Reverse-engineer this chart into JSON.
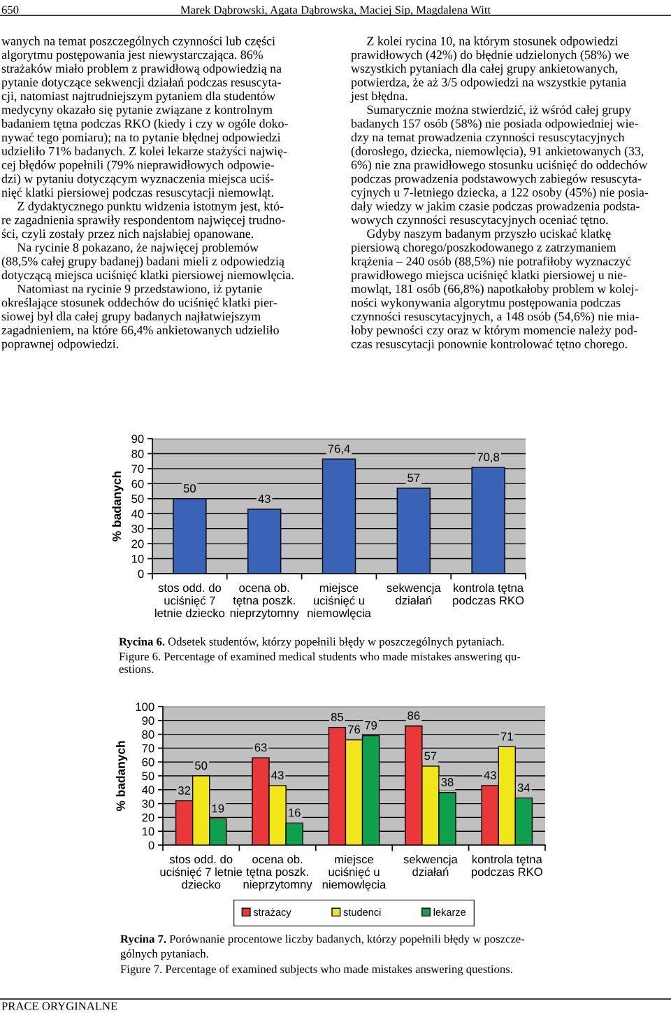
{
  "chart_data": [
    {
      "type": "bar",
      "ylabel": "% badanych",
      "categories": [
        "stos odd. do\nuciśnięć 7\nletnie dziecko",
        "ocena ob.\ntętna poszk.\nnieprzytomny",
        "miejsce\nuciśnięć u\nniemowlęcia",
        "sekwencja\ndziałań",
        "kontrola tętna\npodczas RKO"
      ],
      "values": [
        50,
        43,
        76.4,
        57,
        70.8
      ],
      "value_labels": [
        "50",
        "43",
        "76,4",
        "57",
        "70,8"
      ],
      "color": "#3a62b6",
      "ylim": [
        0,
        90
      ],
      "yticks": [
        0,
        10,
        20,
        30,
        40,
        50,
        60,
        70,
        80,
        90
      ],
      "grid": "y",
      "legend": false,
      "annotations": [
        "650",
        "Marek Dąbrowski, Agata Dąbrowska, Maciej Sip, Magdalena Witt",
        "wanych na temat poszczególnych czynności lub części\nalgorytmu postępowania jest niewystarczająca. 86%\nstrażaków miało problem z prawidłową odpowiedzią na\npytanie dotyczące sekwencji działań podczas resuscyta-\ncji, natomiast najtrudniejszym pytaniem dla studentów\nmedycyny okazało się pytanie związane z kontrolnym\nbadaniem tętna podczas RKO (kiedy i czy w ogóle doko-\nnywać tego pomiaru); na to pytanie błędnej odpowiedzi\nudzieliło 71% badanych. Z kolei lekarze stażyści najwię-\ncej błędów popełnili (79% nieprawidłowych odpowie-\ndzi) w pytaniu dotyczącym wyznaczenia miejsca uciś-\nnięć klatki piersiowej podczas resuscytacji niemowląt.\n     Z dydaktycznego punktu widzenia istotnym jest, któ-\nre zagadnienia sprawiły respondentom najwięcej trudno-\nści, czyli zostały przez nich najsłabiej opanowane.\n     Na rycinie 8 pokazano, że najwięcej problemów\n(88,5% całej grupy badanej) badani mieli z odpowiedzią\ndotyczącą miejsca uciśnięć klatki piersiowej niemowlęcia.\n     Natomiast na rycinie 9 przedstawiono, iż pytanie\nokreślające stosunek oddechów do uciśnięć klatki pier-\nsiowej był dla całej grupy badanych najłatwiejszym\nzagadnieniem, na które 66,4% ankietowanych udzieliło\npoprawnej odpowiedzi.",
        "     Z kolei rycina 10, na którym stosunek odpowiedzi\nprawidłowych (42%) do błędnie udzielonych (58%) we\nwszystkich pytaniach dla całej grupy ankietowanych,\npotwierdza, że aż 3/5 odpowiedzi na wszystkie pytania\njest błędna.\n     Sumarycznie można stwierdzić, iż wśród całej grupy\nbadanych 157 osób (58%) nie posiada odpowiedniej wie-\ndzy na temat prowadzenia czynności resuscytacyjnych\n(dorosłego, dziecka, niemowlęcia), 91 ankietowanych (33,\n6%) nie zna prawidłowego stosunku uciśnięć do oddechów\npodczas prowadzenia podstawowych zabiegów resuscyta-\ncyjnych u 7-letniego dziecka, a 122 osoby (45%) nie posia-\ndały wiedzy w jakim czasie podczas prowadzenia podsta-\nwowych czynności resuscytacyjnych oceniać tętno.\n     Gdyby naszym badanym przyszło uciskać klatkę\npiersiową chorego/poszkodowanego z zatrzymaniem\nkrążenia – 240 osób (88,5%) nie potrafiłoby wyznaczyć\nprawidłowego miejsca uciśnięć klatki piersiowej u nie-\nmowląt, 181 osób (66,8%) napotkałoby problem w kolej-\nności wykonywania algorytmu postępowania podczas\nczynności resuscytacyjnych, a 148 osób (54,6%) nie mia-\nłoby pewności czy oraz w którym momencie należy pod-\nczas resuscytacji ponownie kontrolować tętno chorego.",
        "Rycina 6.",
        "Odsetek studentów, którzy popełnili błędy w poszczególnych pytaniach.",
        "Figure 6. Percentage of examined medical students who made mistakes answering qu-\nestions."
      ]
    },
    {
      "type": "bar",
      "ylabel": "% badanych",
      "categories": [
        "stos odd. do\nuciśnięć 7 letnie\ndziecko",
        "ocena ob.\ntętna poszk.\nnieprzytomny",
        "miejsce\nuciśnięć u\nniemowlęcia",
        "sekwencja\ndziałań",
        "kontrola tętna\npodczas RKO"
      ],
      "series": [
        {
          "name": "strażacy",
          "color": "#e8383a",
          "values": [
            32,
            63,
            85,
            86,
            43
          ]
        },
        {
          "name": "studenci",
          "color": "#f0e619",
          "values": [
            50,
            43,
            76,
            57,
            71
          ]
        },
        {
          "name": "lekarze",
          "color": "#0fa04f",
          "values": [
            19,
            16,
            79,
            38,
            34
          ]
        }
      ],
      "ylim": [
        0,
        100
      ],
      "yticks": [
        0,
        10,
        20,
        30,
        40,
        50,
        60,
        70,
        80,
        90,
        100
      ],
      "grid": "y",
      "legend": "bottom",
      "data_labels": true,
      "annotations": [
        "Rycina 7.",
        "Porównanie procentowe liczby badanych, którzy popełnili błędy w poszcze-\ngólnych pytaniach.",
        "Figure 7. Percentage of examined subjects who made mistakes answering questions.",
        "PRACE ORYGINALNE"
      ]
    }
  ]
}
